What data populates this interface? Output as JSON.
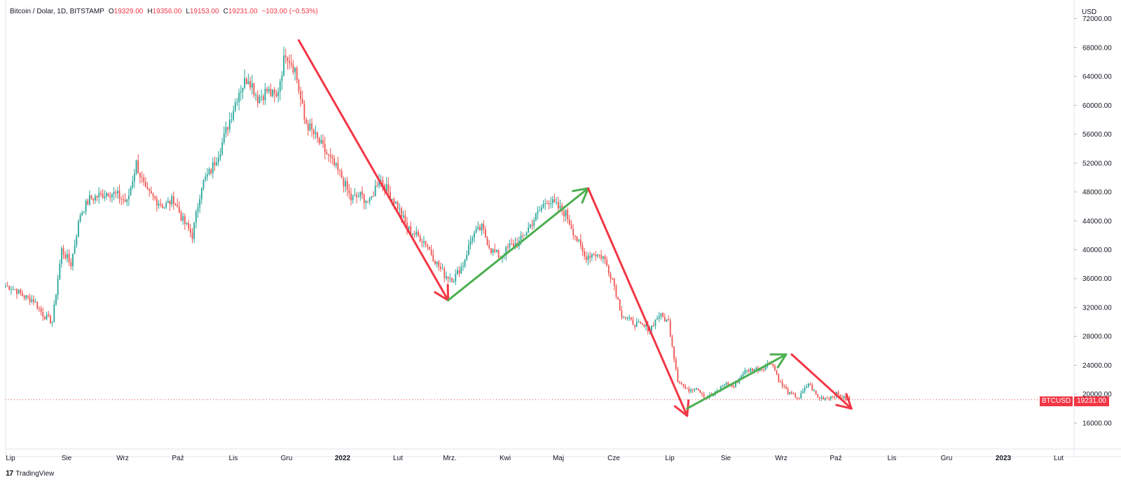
{
  "header": {
    "symbol": "Bitcoin / Dolar, 1D, BITSTAMP",
    "open_label": "O",
    "open": "19329.00",
    "high_label": "H",
    "high": "19356.00",
    "low_label": "L",
    "low": "19153.00",
    "close_label": "C",
    "close": "19231.00",
    "change": "−103.00 (−0.53%)"
  },
  "currency": "USD",
  "last_price": {
    "symbol": "BTCUSD",
    "value": "19231.00"
  },
  "footer": {
    "logo": "17",
    "brand": "TradingView"
  },
  "colors": {
    "up": "#26a69a",
    "down": "#ef5350",
    "trend_up": "#4caf50",
    "trend_down": "#f23645",
    "grid": "#e0e3eb",
    "text": "#131722"
  },
  "chart_data": {
    "type": "candlestick",
    "y_ticks": [
      "72000.00",
      "68000.00",
      "64000.00",
      "60000.00",
      "56000.00",
      "52000.00",
      "48000.00",
      "44000.00",
      "40000.00",
      "36000.00",
      "32000.00",
      "28000.00",
      "24000.00",
      "20000.00",
      "16000.00"
    ],
    "x_ticks": [
      "Lip",
      "Sie",
      "Wrz",
      "Paź",
      "Lis",
      "Gru",
      "2022",
      "Lut",
      "Mrz.",
      "Kwi",
      "Maj",
      "Cze",
      "Lip",
      "Sie",
      "Wrz",
      "Paź",
      "Lis",
      "Gru",
      "2023",
      "Lut"
    ],
    "ylim": [
      12500,
      74000
    ],
    "close_path": [
      [
        0,
        35000
      ],
      [
        5,
        34500
      ],
      [
        10,
        33500
      ],
      [
        15,
        33000
      ],
      [
        20,
        31000
      ],
      [
        25,
        30000
      ],
      [
        30,
        40000
      ],
      [
        35,
        38000
      ],
      [
        40,
        45000
      ],
      [
        45,
        47000
      ],
      [
        50,
        47500
      ],
      [
        55,
        48000
      ],
      [
        60,
        47500
      ],
      [
        65,
        46500
      ],
      [
        70,
        52000
      ],
      [
        75,
        48000
      ],
      [
        80,
        47000
      ],
      [
        85,
        46000
      ],
      [
        90,
        47000
      ],
      [
        95,
        44000
      ],
      [
        100,
        42000
      ],
      [
        105,
        49000
      ],
      [
        110,
        51000
      ],
      [
        115,
        54000
      ],
      [
        120,
        58000
      ],
      [
        125,
        62000
      ],
      [
        130,
        64000
      ],
      [
        135,
        61000
      ],
      [
        140,
        62000
      ],
      [
        145,
        61000
      ],
      [
        150,
        67500
      ],
      [
        155,
        65000
      ],
      [
        160,
        58000
      ],
      [
        165,
        56000
      ],
      [
        170,
        54000
      ],
      [
        175,
        52000
      ],
      [
        180,
        50000
      ],
      [
        185,
        47000
      ],
      [
        190,
        47500
      ],
      [
        195,
        46500
      ],
      [
        200,
        50000
      ],
      [
        205,
        48000
      ],
      [
        210,
        46000
      ],
      [
        215,
        43000
      ],
      [
        220,
        42000
      ],
      [
        225,
        41000
      ],
      [
        230,
        38500
      ],
      [
        235,
        36500
      ],
      [
        240,
        36000
      ],
      [
        245,
        38000
      ],
      [
        250,
        42000
      ],
      [
        255,
        43000
      ],
      [
        260,
        40000
      ],
      [
        265,
        39000
      ],
      [
        270,
        40500
      ],
      [
        275,
        41000
      ],
      [
        280,
        43000
      ],
      [
        285,
        45000
      ],
      [
        290,
        47000
      ],
      [
        295,
        46000
      ],
      [
        300,
        45000
      ],
      [
        305,
        42000
      ],
      [
        310,
        39000
      ],
      [
        315,
        39500
      ],
      [
        320,
        39000
      ],
      [
        325,
        36000
      ],
      [
        330,
        31000
      ],
      [
        335,
        30000
      ],
      [
        340,
        29500
      ],
      [
        345,
        29000
      ],
      [
        350,
        31000
      ],
      [
        355,
        30000
      ],
      [
        360,
        22000
      ],
      [
        365,
        20500
      ],
      [
        370,
        21000
      ],
      [
        375,
        19500
      ],
      [
        380,
        20000
      ],
      [
        385,
        21500
      ],
      [
        390,
        21000
      ],
      [
        395,
        23000
      ],
      [
        400,
        23500
      ],
      [
        405,
        23500
      ],
      [
        410,
        24500
      ],
      [
        415,
        21500
      ],
      [
        420,
        20000
      ],
      [
        425,
        19500
      ],
      [
        430,
        21500
      ],
      [
        435,
        19500
      ],
      [
        440,
        19500
      ],
      [
        445,
        20000
      ],
      [
        450,
        19300
      ],
      [
        452,
        19231
      ]
    ],
    "trend_lines": [
      {
        "color": "down",
        "from": [
          157,
          69000
        ],
        "to": [
          237,
          33000
        ]
      },
      {
        "color": "up",
        "from": [
          237,
          33000
        ],
        "to": [
          312,
          48500
        ]
      },
      {
        "color": "down",
        "from": [
          312,
          48500
        ],
        "to": [
          365,
          17000
        ]
      },
      {
        "color": "up",
        "from": [
          365,
          18000
        ],
        "to": [
          418,
          25500
        ]
      },
      {
        "color": "down",
        "from": [
          421,
          25500
        ],
        "to": [
          453,
          18000
        ]
      }
    ]
  }
}
